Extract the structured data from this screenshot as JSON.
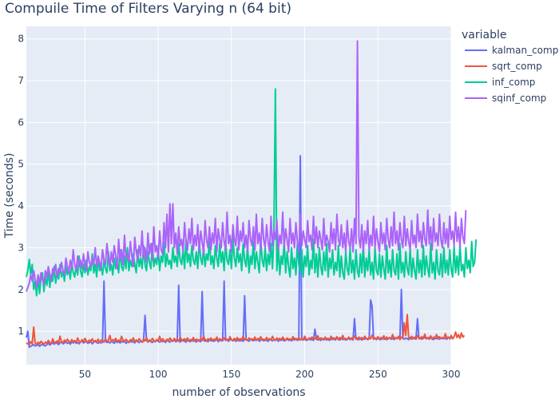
{
  "chart_data": {
    "type": "line",
    "title": "Compuile Time of Filters Varying n (64 bit)",
    "xlabel": "number of observations",
    "ylabel": "Time (seconds)",
    "xlim": [
      10,
      300
    ],
    "ylim": [
      0.2,
      8.3
    ],
    "xticks": [
      50,
      100,
      150,
      200,
      250,
      300
    ],
    "yticks": [
      1,
      2,
      3,
      4,
      5,
      6,
      7,
      8
    ],
    "grid": true,
    "legend": {
      "title": "variable",
      "placement": "right"
    },
    "x_step": 1,
    "series": [
      {
        "name": "kalman_comp",
        "color": "#636efa",
        "x_start": 10,
        "values": [
          0.85,
          1.0,
          0.62,
          0.64,
          0.66,
          0.68,
          0.65,
          0.66,
          0.68,
          0.64,
          0.67,
          0.69,
          0.66,
          0.65,
          0.68,
          0.72,
          0.67,
          0.7,
          0.73,
          0.69,
          0.74,
          0.71,
          0.68,
          0.73,
          0.74,
          0.7,
          0.72,
          0.75,
          0.71,
          0.73,
          0.69,
          0.74,
          0.72,
          0.76,
          0.71,
          0.73,
          0.7,
          0.75,
          0.77,
          0.72,
          0.74,
          0.76,
          0.71,
          0.73,
          0.75,
          0.7,
          0.74,
          0.76,
          0.73,
          0.71,
          0.75,
          0.72,
          0.74,
          2.2,
          0.77,
          0.73,
          0.75,
          0.72,
          0.76,
          0.74,
          0.71,
          0.77,
          0.73,
          0.75,
          0.72,
          0.76,
          0.74,
          0.78,
          0.71,
          0.75,
          0.73,
          0.77,
          0.74,
          0.76,
          0.72,
          0.78,
          0.75,
          0.73,
          0.77,
          0.74,
          0.76,
          1.38,
          0.79,
          0.74,
          0.78,
          0.75,
          0.73,
          0.77,
          0.75,
          0.79,
          0.76,
          0.74,
          0.78,
          0.75,
          0.77,
          0.73,
          0.79,
          0.76,
          0.74,
          0.78,
          0.76,
          0.8,
          0.75,
          0.77,
          2.1,
          0.74,
          0.78,
          0.8,
          0.76,
          0.74,
          0.79,
          0.77,
          0.75,
          0.8,
          0.76,
          0.78,
          0.74,
          0.8,
          0.77,
          0.75,
          1.95,
          0.79,
          0.76,
          0.78,
          0.75,
          0.8,
          0.77,
          0.79,
          0.76,
          0.78,
          0.81,
          0.75,
          0.8,
          0.77,
          0.79,
          2.2,
          0.78,
          0.8,
          0.76,
          0.81,
          0.79,
          0.77,
          0.8,
          0.76,
          0.78,
          0.81,
          0.77,
          0.79,
          0.76,
          1.85,
          0.8,
          0.78,
          0.76,
          0.81,
          0.79,
          0.77,
          0.8,
          0.78,
          0.82,
          0.76,
          0.79,
          0.81,
          0.77,
          0.8,
          0.78,
          0.76,
          0.81,
          0.79,
          0.77,
          0.8,
          0.78,
          0.82,
          0.76,
          0.8,
          0.78,
          0.81,
          0.77,
          0.79,
          0.82,
          0.78,
          0.8,
          0.77,
          0.81,
          0.79,
          0.82,
          0.78,
          0.8,
          5.2,
          0.81,
          0.79,
          0.82,
          0.78,
          0.8,
          0.83,
          0.79,
          0.81,
          0.78,
          1.05,
          0.82,
          0.79,
          0.81,
          0.78,
          0.83,
          0.8,
          0.82,
          0.79,
          0.81,
          0.78,
          0.83,
          0.8,
          0.82,
          0.79,
          0.84,
          0.81,
          0.79,
          0.83,
          0.8,
          0.82,
          0.79,
          0.81,
          0.83,
          0.8,
          0.82,
          0.79,
          1.3,
          0.81,
          0.84,
          0.8,
          0.82,
          0.79,
          0.83,
          0.81,
          0.84,
          0.8,
          0.82,
          1.75,
          1.6,
          0.81,
          0.83,
          0.8,
          0.84,
          0.82,
          0.8,
          0.83,
          0.81,
          0.84,
          0.8,
          0.82,
          0.85,
          0.81,
          0.83,
          0.8,
          0.84,
          0.82,
          0.85,
          0.81,
          2.0,
          0.83,
          0.81,
          0.84,
          0.82,
          0.8,
          0.85,
          0.81,
          0.83,
          0.82,
          0.84,
          1.3,
          0.82,
          0.85,
          0.81,
          0.83,
          0.86,
          0.82,
          0.84,
          0.81,
          0.85,
          0.83,
          0.8,
          0.84,
          0.82,
          0.86,
          0.81,
          0.84,
          0.82,
          0.85,
          0.83,
          0.81,
          0.86,
          0.82,
          0.84
        ]
      },
      {
        "name": "sqrt_comp",
        "color": "#ef553b",
        "x_start": 10,
        "values": [
          0.72,
          0.7,
          0.68,
          0.75,
          0.7,
          1.1,
          0.72,
          0.68,
          0.74,
          0.7,
          0.76,
          0.72,
          0.69,
          0.74,
          0.71,
          0.78,
          0.73,
          0.7,
          0.82,
          0.74,
          0.71,
          0.77,
          0.73,
          0.88,
          0.75,
          0.72,
          0.79,
          0.74,
          0.81,
          0.76,
          0.73,
          0.8,
          0.75,
          0.78,
          0.72,
          0.84,
          0.76,
          0.74,
          0.8,
          0.75,
          0.83,
          0.77,
          0.73,
          0.79,
          0.76,
          0.82,
          0.74,
          0.78,
          0.75,
          0.81,
          0.73,
          0.79,
          0.77,
          0.74,
          0.82,
          0.76,
          0.78,
          0.9,
          0.75,
          0.8,
          0.77,
          0.83,
          0.74,
          0.79,
          0.76,
          0.88,
          0.78,
          0.75,
          0.81,
          0.77,
          0.73,
          0.8,
          0.78,
          0.84,
          0.75,
          0.79,
          0.76,
          0.82,
          0.78,
          0.74,
          0.8,
          0.77,
          0.85,
          0.75,
          0.79,
          0.76,
          0.83,
          0.78,
          0.75,
          0.8,
          0.77,
          0.88,
          0.76,
          0.82,
          0.78,
          0.75,
          0.81,
          0.77,
          0.84,
          0.79,
          0.76,
          0.83,
          0.78,
          0.8,
          0.76,
          0.86,
          0.79,
          0.77,
          0.82,
          0.78,
          0.84,
          0.76,
          0.8,
          0.78,
          0.85,
          0.77,
          0.81,
          0.79,
          0.76,
          0.83,
          0.78,
          0.88,
          0.8,
          0.77,
          0.82,
          0.79,
          0.84,
          0.77,
          0.81,
          0.79,
          0.86,
          0.78,
          0.82,
          0.8,
          0.77,
          0.84,
          0.79,
          0.81,
          0.78,
          0.87,
          0.8,
          0.78,
          0.83,
          0.79,
          0.85,
          0.77,
          0.82,
          0.8,
          0.88,
          0.79,
          0.81,
          0.78,
          0.84,
          0.8,
          0.82,
          0.79,
          0.86,
          0.78,
          0.83,
          0.8,
          0.87,
          0.79,
          0.81,
          0.78,
          0.85,
          0.8,
          0.82,
          0.79,
          0.88,
          0.81,
          0.78,
          0.84,
          0.8,
          0.83,
          0.79,
          0.86,
          0.81,
          0.78,
          0.84,
          0.8,
          0.82,
          0.79,
          0.87,
          0.81,
          0.83,
          0.8,
          0.85,
          0.79,
          0.82,
          0.8,
          0.88,
          0.81,
          0.79,
          0.84,
          0.82,
          0.86,
          0.8,
          0.83,
          0.81,
          0.89,
          0.8,
          0.84,
          0.82,
          0.79,
          0.86,
          0.81,
          0.83,
          0.8,
          0.88,
          0.82,
          0.84,
          0.81,
          0.87,
          0.8,
          0.85,
          0.82,
          0.9,
          0.81,
          0.83,
          0.8,
          0.86,
          0.82,
          0.84,
          0.81,
          0.89,
          0.83,
          0.8,
          0.86,
          0.82,
          0.85,
          0.81,
          0.88,
          0.83,
          0.8,
          0.86,
          0.82,
          0.91,
          0.81,
          0.84,
          0.82,
          0.87,
          0.8,
          0.85,
          0.83,
          0.89,
          0.81,
          0.86,
          0.82,
          0.84,
          0.81,
          0.92,
          0.83,
          0.85,
          0.82,
          0.88,
          0.8,
          0.86,
          0.83,
          1.2,
          0.9,
          1.4,
          0.84,
          0.82,
          0.88,
          0.83,
          0.86,
          0.81,
          0.9,
          0.84,
          0.82,
          0.87,
          0.83,
          0.93,
          0.82,
          0.85,
          0.83,
          0.89,
          0.81,
          0.86,
          0.84,
          0.92,
          0.82,
          0.87,
          0.83,
          0.85,
          0.82,
          0.94,
          0.84,
          0.86,
          0.83,
          0.9,
          0.82,
          0.87,
          0.98,
          0.85,
          0.92,
          0.83,
          0.96,
          0.86,
          0.9
        ]
      },
      {
        "name": "inf_comp",
        "color": "#00cc96",
        "x_start": 10,
        "values": [
          2.3,
          2.45,
          2.72,
          2.35,
          2.6,
          2.0,
          2.2,
          1.85,
          2.3,
          1.9,
          2.25,
          2.4,
          1.95,
          2.3,
          2.1,
          2.45,
          2.05,
          2.35,
          2.2,
          2.55,
          2.15,
          2.4,
          2.25,
          2.6,
          2.3,
          2.45,
          2.2,
          2.55,
          2.35,
          2.5,
          2.25,
          2.65,
          2.4,
          2.3,
          2.55,
          2.35,
          2.8,
          2.45,
          2.3,
          2.6,
          2.4,
          2.7,
          2.35,
          2.55,
          2.45,
          2.85,
          2.4,
          2.6,
          2.3,
          2.75,
          2.45,
          2.55,
          2.35,
          2.7,
          2.5,
          2.4,
          2.9,
          2.45,
          2.6,
          2.35,
          2.75,
          2.5,
          2.65,
          2.4,
          2.95,
          2.55,
          2.45,
          2.8,
          2.5,
          3.0,
          2.45,
          2.7,
          2.55,
          2.85,
          2.6,
          2.4,
          2.95,
          2.55,
          2.75,
          2.5,
          3.05,
          2.6,
          2.45,
          2.9,
          2.65,
          2.5,
          3.1,
          2.55,
          2.75,
          2.6,
          2.95,
          2.45,
          2.8,
          2.65,
          3.15,
          2.55,
          2.85,
          2.6,
          2.7,
          2.5,
          3.0,
          2.65,
          2.8,
          2.55,
          3.1,
          2.7,
          2.6,
          2.95,
          2.5,
          3.2,
          2.65,
          2.85,
          2.55,
          3.05,
          2.7,
          2.6,
          2.9,
          2.5,
          3.15,
          2.75,
          2.6,
          3.0,
          2.55,
          2.85,
          2.7,
          3.2,
          2.6,
          2.8,
          2.5,
          3.05,
          2.75,
          2.55,
          3.1,
          2.65,
          2.9,
          2.45,
          3.15,
          2.7,
          2.6,
          2.95,
          2.5,
          3.25,
          2.75,
          2.55,
          3.0,
          2.65,
          2.85,
          2.45,
          3.1,
          2.7,
          2.55,
          3.05,
          2.4,
          2.8,
          2.6,
          3.15,
          2.5,
          2.9,
          2.65,
          2.4,
          3.2,
          2.7,
          2.55,
          3.0,
          2.45,
          2.85,
          2.6,
          3.1,
          2.5,
          3.4,
          6.8,
          2.45,
          3.05,
          2.35,
          2.8,
          2.6,
          3.15,
          2.4,
          2.9,
          2.55,
          2.3,
          3.0,
          2.5,
          2.75,
          2.35,
          3.1,
          2.6,
          2.4,
          2.95,
          2.3,
          2.8,
          2.55,
          3.05,
          2.35,
          2.7,
          2.5,
          3.2,
          2.4,
          2.85,
          2.3,
          3.0,
          2.55,
          2.35,
          2.9,
          2.45,
          3.1,
          2.3,
          2.75,
          2.5,
          2.95,
          2.35,
          2.65,
          2.45,
          3.05,
          2.3,
          2.8,
          2.4,
          2.25,
          2.9,
          2.5,
          2.35,
          3.0,
          2.4,
          2.7,
          2.25,
          2.95,
          2.45,
          2.3,
          2.85,
          2.4,
          3.1,
          2.3,
          2.75,
          2.45,
          2.95,
          2.35,
          2.65,
          2.25,
          3.0,
          2.45,
          2.35,
          2.85,
          2.3,
          2.8,
          2.5,
          2.25,
          3.05,
          2.4,
          2.7,
          2.3,
          2.95,
          2.45,
          2.35,
          2.85,
          2.25,
          3.1,
          2.4,
          2.65,
          2.3,
          2.9,
          2.5,
          2.35,
          3.0,
          2.3,
          2.75,
          2.45,
          2.25,
          2.95,
          2.4,
          2.7,
          2.3,
          3.05,
          2.35,
          2.8,
          2.5,
          2.3,
          3.1,
          2.4,
          2.65,
          2.25,
          2.95,
          2.45,
          2.35,
          2.85,
          2.3,
          3.0,
          2.4,
          2.7,
          2.35,
          2.95,
          2.5,
          2.3,
          3.05,
          2.4,
          2.8,
          2.35,
          3.1,
          2.45,
          2.6,
          2.3,
          3.0,
          2.5,
          2.7,
          2.4,
          3.15,
          2.55,
          2.65,
          3.2
        ]
      },
      {
        "name": "sqinf_comp",
        "color": "#ab63fa",
        "x_start": 10,
        "values": [
          1.95,
          2.05,
          2.15,
          2.35,
          2.2,
          2.45,
          2.25,
          2.05,
          2.35,
          2.15,
          2.4,
          2.25,
          2.1,
          2.45,
          2.3,
          2.55,
          2.35,
          2.2,
          2.5,
          2.4,
          2.6,
          2.3,
          2.5,
          2.4,
          2.65,
          2.45,
          2.35,
          2.75,
          2.55,
          2.4,
          2.7,
          2.5,
          2.95,
          2.6,
          2.45,
          2.8,
          2.55,
          2.7,
          2.5,
          2.85,
          2.6,
          2.45,
          2.9,
          2.65,
          2.55,
          2.75,
          2.6,
          3.0,
          2.55,
          2.8,
          2.65,
          2.5,
          2.95,
          2.7,
          2.6,
          3.1,
          2.75,
          2.55,
          2.9,
          2.65,
          3.05,
          2.8,
          2.5,
          3.2,
          2.7,
          2.95,
          2.6,
          3.3,
          2.75,
          2.85,
          2.65,
          3.15,
          2.8,
          2.55,
          3.25,
          2.9,
          2.7,
          3.05,
          2.8,
          3.4,
          2.75,
          3.0,
          2.65,
          3.35,
          2.85,
          3.1,
          2.7,
          3.5,
          2.9,
          3.05,
          2.75,
          3.4,
          2.95,
          2.85,
          3.6,
          3.0,
          3.8,
          2.9,
          4.05,
          3.1,
          4.05,
          3.0,
          3.35,
          2.85,
          3.5,
          3.05,
          3.2,
          2.9,
          3.6,
          3.15,
          2.95,
          3.45,
          3.1,
          3.7,
          2.95,
          3.3,
          3.05,
          3.55,
          2.9,
          3.4,
          3.15,
          2.85,
          3.65,
          3.2,
          3.0,
          3.5,
          2.95,
          3.35,
          3.1,
          3.7,
          2.9,
          3.45,
          3.2,
          3.0,
          3.6,
          3.15,
          2.95,
          3.85,
          3.1,
          3.3,
          2.9,
          3.55,
          3.2,
          3.05,
          3.75,
          2.95,
          3.4,
          3.15,
          3.6,
          3.0,
          3.3,
          2.9,
          3.65,
          3.2,
          3.05,
          3.5,
          2.95,
          3.8,
          3.1,
          3.35,
          2.95,
          3.7,
          3.2,
          3.0,
          3.55,
          3.15,
          2.9,
          3.75,
          3.05,
          3.4,
          3.2,
          3.65,
          2.95,
          3.3,
          3.1,
          3.85,
          3.0,
          3.45,
          3.2,
          2.9,
          3.7,
          3.1,
          3.35,
          3.0,
          3.6,
          3.15,
          2.9,
          3.8,
          3.05,
          3.4,
          3.2,
          3.0,
          3.65,
          3.15,
          3.3,
          2.95,
          3.75,
          3.1,
          3.5,
          3.0,
          3.4,
          3.2,
          2.95,
          3.7,
          3.05,
          3.3,
          3.15,
          2.9,
          3.6,
          3.1,
          3.45,
          2.95,
          3.8,
          3.2,
          3.05,
          3.55,
          3.0,
          3.35,
          2.9,
          3.65,
          3.15,
          3.0,
          3.45,
          2.9,
          3.7,
          3.1,
          7.95,
          3.25,
          3.0,
          3.55,
          2.9,
          3.4,
          3.1,
          3.65,
          2.95,
          3.3,
          3.05,
          3.75,
          3.0,
          3.45,
          3.15,
          2.9,
          3.6,
          3.1,
          3.35,
          2.95,
          3.7,
          3.2,
          3.0,
          3.5,
          3.05,
          3.85,
          3.1,
          3.4,
          2.95,
          3.6,
          3.2,
          3.0,
          3.75,
          3.05,
          3.45,
          3.15,
          2.95,
          3.65,
          3.1,
          3.3,
          3.0,
          3.8,
          3.15,
          3.4,
          3.0,
          3.6,
          3.2,
          3.05,
          3.9,
          3.1,
          3.5,
          2.95,
          3.7,
          3.15,
          3.35,
          3.05,
          3.8,
          3.2,
          3.0,
          3.6,
          3.1,
          3.45,
          3.0,
          3.75,
          3.2,
          3.4,
          3.05,
          3.85,
          3.15,
          3.5,
          3.0,
          3.7,
          3.25,
          3.1,
          3.9
        ]
      }
    ]
  }
}
